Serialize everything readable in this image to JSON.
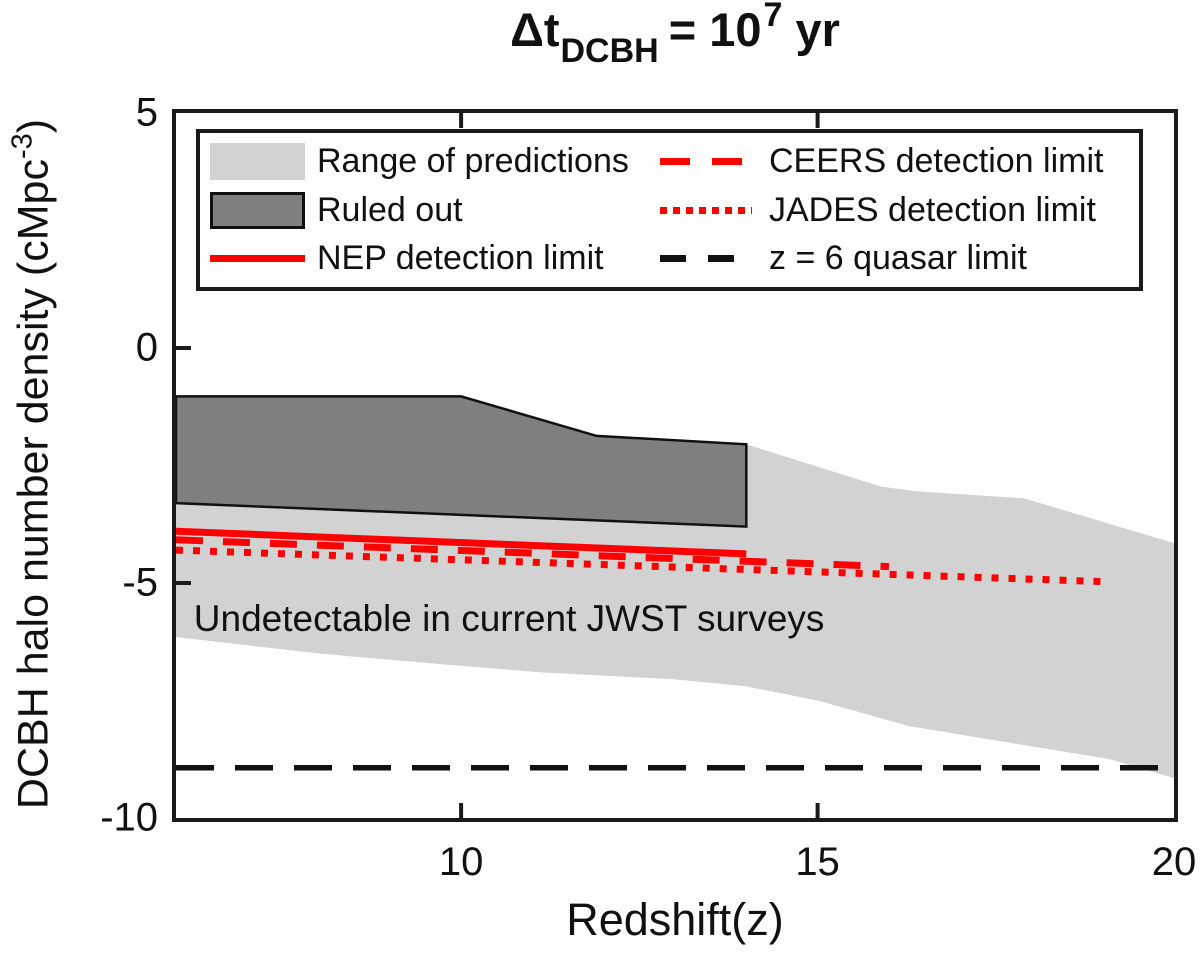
{
  "title": {
    "t1": "Δt",
    "sub": "DCBH",
    "mid": "= 10",
    "sup": "7",
    "t3": "yr"
  },
  "axes": {
    "xlabel": "Redshift(z)",
    "ylabel_main": "DCBH halo number density (cMpc",
    "ylabel_sup": "-3",
    "ylabel_close": ")"
  },
  "annotation": {
    "text": "Undetectable in current JWST surveys"
  },
  "legend": {
    "col1": [
      {
        "swatch": "patch-light",
        "label": "Range of predictions"
      },
      {
        "swatch": "patch-dark",
        "label": "Ruled out"
      },
      {
        "swatch": "line-red",
        "label": "NEP detection limit"
      }
    ],
    "col2": [
      {
        "swatch": "dash-red",
        "label": "CEERS detection limit"
      },
      {
        "swatch": "dot-red",
        "label": "JADES detection limit"
      },
      {
        "swatch": "dash-black",
        "label": "z = 6 quasar limit"
      }
    ]
  },
  "colors": {
    "range_fill": "#d2d2d2",
    "ruled_fill": "#7f7f7f",
    "red": "#ff0000",
    "black": "#111111",
    "frame": "#1a1a1a"
  },
  "chart_data": {
    "type": "area",
    "title": "Delta t_DCBH = 10^7 yr",
    "xlabel": "Redshift(z)",
    "ylabel": "DCBH halo number density (cMpc^-3)",
    "x_axis": {
      "min": 6,
      "max": 20,
      "ticks": [
        10,
        15,
        20
      ]
    },
    "y_axis": {
      "min": -10,
      "max": 5,
      "ticks": [
        5,
        0,
        -5,
        -10
      ]
    },
    "grid": false,
    "legend_position": "top-inside",
    "regions": [
      {
        "name": "range-of-predictions",
        "fill": "#d2d2d2",
        "top": [
          [
            6,
            -1.03
          ],
          [
            10,
            -1.03
          ],
          [
            11.9,
            -1.87
          ],
          [
            14,
            -2.05
          ],
          [
            15.9,
            -2.95
          ],
          [
            16.4,
            -3.05
          ],
          [
            17.9,
            -3.2
          ],
          [
            20,
            -4.15
          ]
        ],
        "bottom": [
          [
            6,
            -6.15
          ],
          [
            8,
            -6.5
          ],
          [
            9.5,
            -6.7
          ],
          [
            11.1,
            -6.9
          ],
          [
            13,
            -7.05
          ],
          [
            14,
            -7.2
          ],
          [
            15,
            -7.5
          ],
          [
            16.3,
            -8.05
          ],
          [
            17.7,
            -8.4
          ],
          [
            19.1,
            -8.75
          ],
          [
            20,
            -9.15
          ]
        ]
      },
      {
        "name": "ruled-out",
        "fill": "#7f7f7f",
        "stroke": "#111111",
        "stroke_width": 2.5,
        "top": [
          [
            6,
            -1.03
          ],
          [
            10,
            -1.03
          ],
          [
            11.9,
            -1.87
          ],
          [
            14,
            -2.05
          ]
        ],
        "bottom": [
          [
            6,
            -3.3
          ],
          [
            14,
            -3.8
          ]
        ]
      }
    ],
    "lines": [
      {
        "name": "nep-detection-limit",
        "color": "#ff0000",
        "width": 7,
        "style": "solid",
        "points": [
          [
            6,
            -3.9
          ],
          [
            14,
            -4.38
          ]
        ]
      },
      {
        "name": "ceers-detection-limit",
        "color": "#ff0000",
        "width": 7,
        "style": "dashed",
        "points": [
          [
            6,
            -4.08
          ],
          [
            16,
            -4.65
          ]
        ]
      },
      {
        "name": "jades-detection-limit",
        "color": "#ff0000",
        "width": 7,
        "style": "dotted",
        "points": [
          [
            6,
            -4.3
          ],
          [
            19,
            -4.97
          ]
        ]
      },
      {
        "name": "z6-quasar-limit",
        "color": "#111111",
        "width": 5.5,
        "style": "dashed-long",
        "points": [
          [
            6,
            -8.93
          ],
          [
            20,
            -8.93
          ]
        ]
      }
    ],
    "annotation": {
      "text": "Undetectable in current JWST surveys",
      "x": 6.25,
      "y_baseline": -6.02,
      "font_size": 37
    }
  }
}
